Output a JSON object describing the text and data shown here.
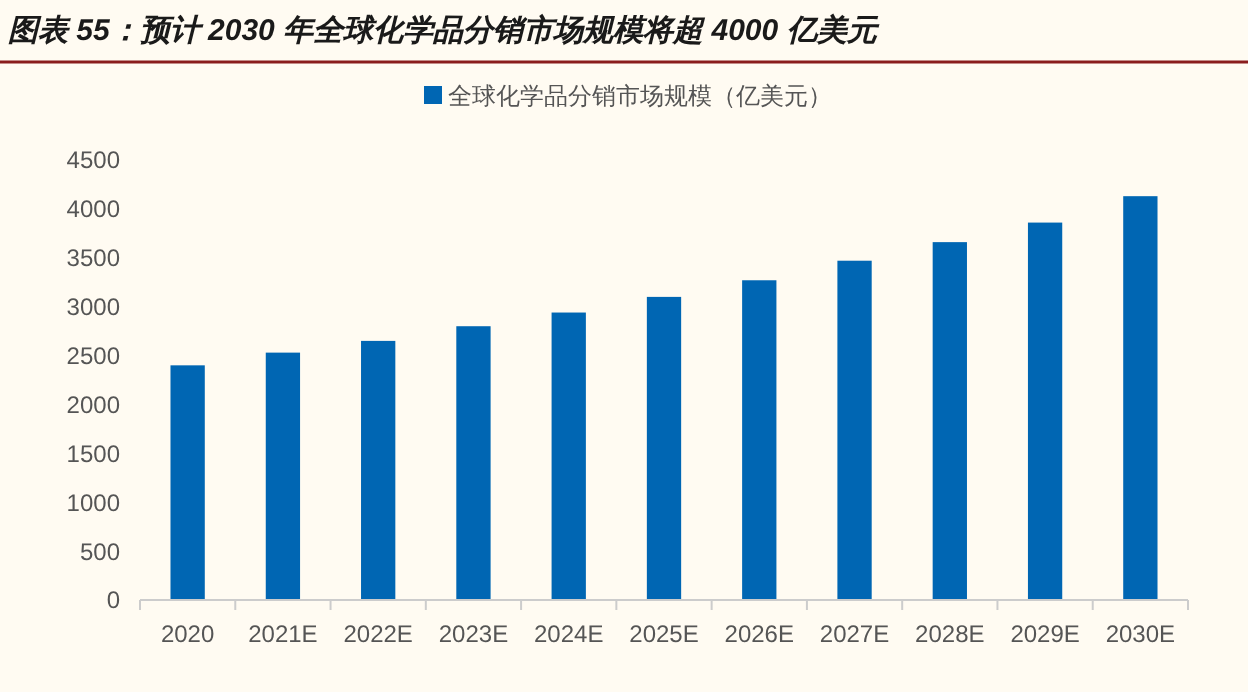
{
  "chart_data": {
    "type": "bar",
    "title": "图表 55：预计 2030 年全球化学品分销市场规模将超 4000 亿美元",
    "categories": [
      "2020",
      "2021E",
      "2022E",
      "2023E",
      "2024E",
      "2025E",
      "2026E",
      "2027E",
      "2028E",
      "2029E",
      "2030E"
    ],
    "series": [
      {
        "name": "全球化学品分销市场规模（亿美元）",
        "color": "#0066b3",
        "values": [
          2400,
          2530,
          2650,
          2800,
          2940,
          3100,
          3270,
          3470,
          3660,
          3860,
          4130
        ]
      }
    ],
    "ylim": [
      0,
      4500
    ],
    "yticks": [
      0,
      500,
      1000,
      1500,
      2000,
      2500,
      3000,
      3500,
      4000,
      4500
    ],
    "grid": false,
    "legend": "top"
  }
}
